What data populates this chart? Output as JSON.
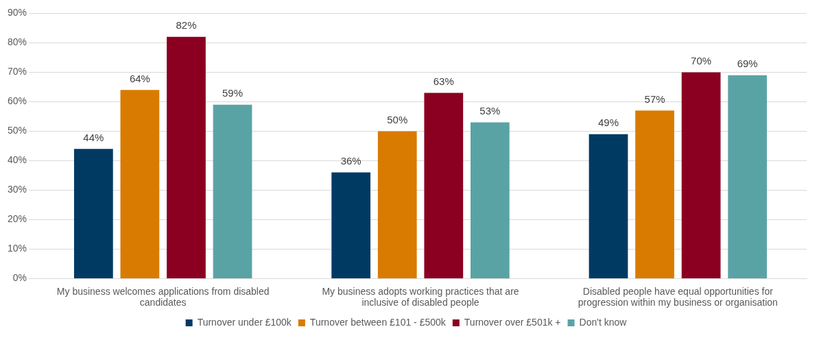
{
  "chart_data": {
    "type": "bar",
    "categories": [
      "My business welcomes applications from disabled candidates",
      "My business adopts working practices that are inclusive of disabled people",
      "Disabled people have equal opportunities for progression within my business or organisation"
    ],
    "series": [
      {
        "name": "Turnover under £100k",
        "color": "#003a63",
        "values": [
          44,
          36,
          49
        ]
      },
      {
        "name": "Turnover between £101 - £500k",
        "color": "#d97b00",
        "values": [
          64,
          50,
          57
        ]
      },
      {
        "name": "Turnover over £501k +",
        "color": "#8b0020",
        "values": [
          82,
          63,
          70
        ]
      },
      {
        "name": "Don't know",
        "color": "#5aa3a5",
        "values": [
          59,
          53,
          69
        ]
      }
    ],
    "ylim": [
      0,
      90
    ],
    "yticks": [
      {
        "value": 0,
        "label": "0%"
      },
      {
        "value": 10,
        "label": "10%"
      },
      {
        "value": 20,
        "label": "20%"
      },
      {
        "value": 30,
        "label": "30%"
      },
      {
        "value": 40,
        "label": "40%"
      },
      {
        "value": 50,
        "label": "50%"
      },
      {
        "value": 60,
        "label": "60%"
      },
      {
        "value": 70,
        "label": "70%"
      },
      {
        "value": 80,
        "label": "80%"
      },
      {
        "value": 90,
        "label": "90%"
      }
    ],
    "value_labels": [
      [
        "44%",
        "36%",
        "49%"
      ],
      [
        "64%",
        "50%",
        "57%"
      ],
      [
        "82%",
        "63%",
        "70%"
      ],
      [
        "59%",
        "53%",
        "69%"
      ]
    ],
    "grid": "y",
    "legend": "bottom"
  }
}
